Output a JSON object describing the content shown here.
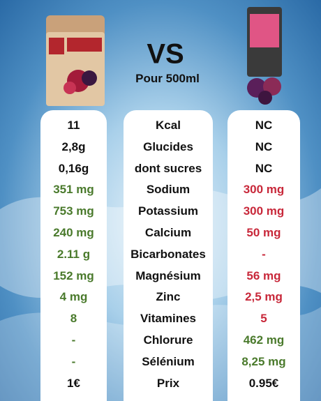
{
  "header": {
    "vs": "VS",
    "subtitle": "Pour 500ml"
  },
  "colors": {
    "dark": "#111111",
    "green": "#4a7a2c",
    "red": "#c8283a"
  },
  "rows": [
    {
      "left": "11",
      "label": "Kcal",
      "right": "NC",
      "left_color": "dark",
      "right_color": "dark"
    },
    {
      "left": "2,8g",
      "label": "Glucides",
      "right": "NC",
      "left_color": "dark",
      "right_color": "dark"
    },
    {
      "left": "0,16g",
      "label": "dont sucres",
      "right": "NC",
      "left_color": "dark",
      "right_color": "dark"
    },
    {
      "left": "351 mg",
      "label": "Sodium",
      "right": "300 mg",
      "left_color": "green",
      "right_color": "red"
    },
    {
      "left": "753 mg",
      "label": "Potassium",
      "right": "300 mg",
      "left_color": "green",
      "right_color": "red"
    },
    {
      "left": "240 mg",
      "label": "Calcium",
      "right": "50 mg",
      "left_color": "green",
      "right_color": "red"
    },
    {
      "left": "2.11 g",
      "label": "Bicarbonates",
      "right": "-",
      "left_color": "green",
      "right_color": "red"
    },
    {
      "left": "152 mg",
      "label": "Magnésium",
      "right": "56 mg",
      "left_color": "green",
      "right_color": "red"
    },
    {
      "left": "4 mg",
      "label": "Zinc",
      "right": "2,5 mg",
      "left_color": "green",
      "right_color": "red"
    },
    {
      "left": "8",
      "label": "Vitamines",
      "right": "5",
      "left_color": "green",
      "right_color": "red"
    },
    {
      "left": "-",
      "label": "Chlorure",
      "right": "462 mg",
      "left_color": "green",
      "right_color": "green"
    },
    {
      "left": "-",
      "label": "Sélénium",
      "right": "8,25 mg",
      "left_color": "green",
      "right_color": "green"
    },
    {
      "left": "1€",
      "label": "Prix",
      "right": "0.95€",
      "left_color": "dark",
      "right_color": "dark"
    }
  ]
}
